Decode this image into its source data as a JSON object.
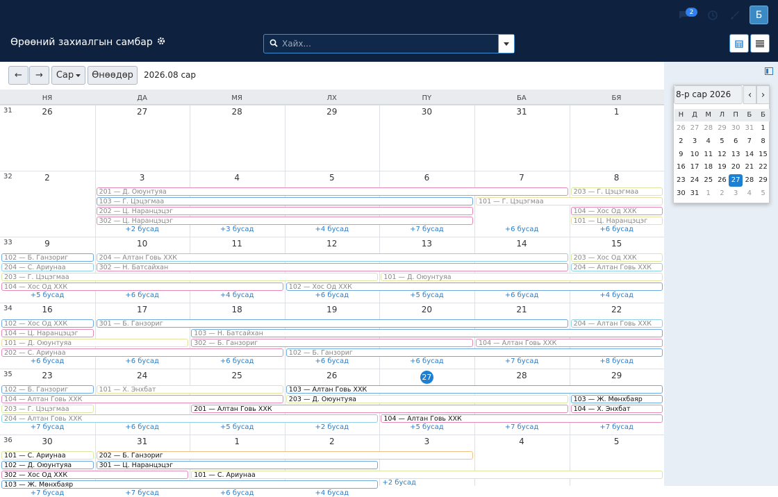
{
  "header": {
    "title": "Өрөөний захиалгын самбар",
    "notification_count": "2",
    "avatar_letter": "Б"
  },
  "search": {
    "placeholder": "Хайх..."
  },
  "toolbar": {
    "prev": "←",
    "next": "→",
    "view_label": "Сар",
    "today_label": "Өнөөдөр",
    "period": "2026.08 сар"
  },
  "weekdays": [
    "НЯ",
    "ДА",
    "МЯ",
    "ЛХ",
    "ПҮ",
    "БА",
    "БЯ"
  ],
  "weeks": [
    {
      "num": "31",
      "days": [
        "26",
        "27",
        "28",
        "29",
        "30",
        "31",
        "1"
      ]
    },
    {
      "num": "32",
      "days": [
        "2",
        "3",
        "4",
        "5",
        "6",
        "7",
        "8"
      ]
    },
    {
      "num": "33",
      "days": [
        "9",
        "10",
        "11",
        "12",
        "13",
        "14",
        "15"
      ]
    },
    {
      "num": "34",
      "days": [
        "16",
        "17",
        "18",
        "19",
        "20",
        "21",
        "22"
      ]
    },
    {
      "num": "35",
      "days": [
        "23",
        "24",
        "25",
        "26",
        "27",
        "28",
        "29"
      ]
    },
    {
      "num": "36",
      "days": [
        "30",
        "31",
        "1",
        "2",
        "3",
        "4",
        "5"
      ]
    }
  ],
  "today": {
    "week": 4,
    "col": 4
  },
  "events": [
    {
      "w": 1,
      "c": 1,
      "s": 5,
      "r": 0,
      "t": "201 — Д. Оюунтуяа",
      "color": "#e58ab8"
    },
    {
      "w": 1,
      "c": 6,
      "s": 1,
      "r": 0,
      "t": "203 — Г. Цэцэгмаа",
      "color": "#d8e8a0"
    },
    {
      "w": 1,
      "c": 1,
      "s": 4,
      "r": 1,
      "t": "103 — Г. Цэцэгмаа",
      "color": "#6ea8e0"
    },
    {
      "w": 1,
      "c": 5,
      "s": 2,
      "r": 1,
      "t": "101 — Г. Цэцэгмаа",
      "color": "#e8e0a0"
    },
    {
      "w": 1,
      "c": 1,
      "s": 4,
      "r": 2,
      "t": "202 — Ц. Наранцэцэг",
      "color": "#e58ab8"
    },
    {
      "w": 1,
      "c": 6,
      "s": 1,
      "r": 2,
      "t": "104 — Хос Од ХХК",
      "color": "#e58ab8"
    },
    {
      "w": 1,
      "c": 1,
      "s": 4,
      "r": 3,
      "t": "302 — Ц. Наранцэцэг",
      "color": "#e58ab8"
    },
    {
      "w": 1,
      "c": 6,
      "s": 1,
      "r": 3,
      "t": "101 — Ц. Наранцэцэг",
      "color": "#e8e0a0"
    },
    {
      "w": 2,
      "c": 0,
      "s": 1,
      "r": 0,
      "t": "102 — Б. Ганзориг",
      "color": "#6ea8e0"
    },
    {
      "w": 2,
      "c": 1,
      "s": 5,
      "r": 0,
      "t": "204 — Алтан Говь ХХК",
      "color": "#8fd0e8"
    },
    {
      "w": 2,
      "c": 6,
      "s": 1,
      "r": 0,
      "t": "203 — Хос Од ХХК",
      "color": "#d8e8a0"
    },
    {
      "w": 2,
      "c": 0,
      "s": 1,
      "r": 1,
      "t": "204 — С. Ариунаа",
      "color": "#8fd0e8"
    },
    {
      "w": 2,
      "c": 1,
      "s": 5,
      "r": 1,
      "t": "302 — Н. Батсайхан",
      "color": "#e58ab8"
    },
    {
      "w": 2,
      "c": 6,
      "s": 1,
      "r": 1,
      "t": "204 — Алтан Говь ХХК",
      "color": "#8fd0e8"
    },
    {
      "w": 2,
      "c": 0,
      "s": 4,
      "r": 2,
      "t": "203 — Г. Цэцэгмаа",
      "color": "#d8e8a0"
    },
    {
      "w": 2,
      "c": 4,
      "s": 3,
      "r": 2,
      "t": "101 — Д. Оюунтуяа",
      "color": "#e8e0a0"
    },
    {
      "w": 2,
      "c": 0,
      "s": 3,
      "r": 3,
      "t": "104 — Хос Од ХХК",
      "color": "#e58ab8"
    },
    {
      "w": 2,
      "c": 3,
      "s": 4,
      "r": 3,
      "t": "102 — Хос Од ХХК",
      "color": "#6ea8e0"
    },
    {
      "w": 3,
      "c": 0,
      "s": 1,
      "r": 0,
      "t": "102 — Хос Од ХХК",
      "color": "#6ea8e0"
    },
    {
      "w": 3,
      "c": 1,
      "s": 5,
      "r": 0,
      "t": "301 — Б. Ганзориг",
      "color": "#6ea8e0"
    },
    {
      "w": 3,
      "c": 6,
      "s": 1,
      "r": 0,
      "t": "204 — Алтан Говь ХХК",
      "color": "#8fd0e8"
    },
    {
      "w": 3,
      "c": 0,
      "s": 1,
      "r": 1,
      "t": "104 — Ц. Наранцэцэг",
      "color": "#e58ab8"
    },
    {
      "w": 3,
      "c": 2,
      "s": 5,
      "r": 1,
      "t": "103 — Н. Батсайхан",
      "color": "#6ea8e0"
    },
    {
      "w": 3,
      "c": 0,
      "s": 2,
      "r": 2,
      "t": "101 — Д. Оюунтуяа",
      "color": "#e8e0a0"
    },
    {
      "w": 3,
      "c": 2,
      "s": 3,
      "r": 2,
      "t": "302 — Б. Ганзориг",
      "color": "#e58ab8"
    },
    {
      "w": 3,
      "c": 5,
      "s": 2,
      "r": 2,
      "t": "104 — Алтан Говь ХХК",
      "color": "#e58ab8"
    },
    {
      "w": 3,
      "c": 0,
      "s": 3,
      "r": 3,
      "t": "202 — С. Ариунаа",
      "color": "#e58ab8"
    },
    {
      "w": 3,
      "c": 3,
      "s": 4,
      "r": 3,
      "t": "102 — Б. Ганзориг",
      "color": "#6ea8e0"
    },
    {
      "w": 4,
      "c": 0,
      "s": 1,
      "r": 0,
      "t": "102 — Б. Ганзориг",
      "color": "#6ea8e0"
    },
    {
      "w": 4,
      "c": 1,
      "s": 2,
      "r": 0,
      "t": "101 — Х. Энхбат",
      "color": "#e8e0a0"
    },
    {
      "w": 4,
      "c": 3,
      "s": 4,
      "r": 0,
      "t": "103 — Алтан Говь ХХК",
      "color": "#6ea8e0",
      "cur": true
    },
    {
      "w": 4,
      "c": 0,
      "s": 3,
      "r": 1,
      "t": "104 — Алтан Говь ХХК",
      "color": "#e58ab8"
    },
    {
      "w": 4,
      "c": 3,
      "s": 3,
      "r": 1,
      "t": "203 — Д. Оюунтуяа",
      "color": "#d8e8a0",
      "cur": true
    },
    {
      "w": 4,
      "c": 6,
      "s": 1,
      "r": 1,
      "t": "103 — Ж. Мөнхбаяр",
      "color": "#6ea8e0",
      "cur": true
    },
    {
      "w": 4,
      "c": 0,
      "s": 1,
      "r": 2,
      "t": "203 — Г. Цэцэгмаа",
      "color": "#d8e8a0"
    },
    {
      "w": 4,
      "c": 2,
      "s": 4,
      "r": 2,
      "t": "201 — Алтан Говь ХХК",
      "color": "#e58ab8",
      "cur": true
    },
    {
      "w": 4,
      "c": 6,
      "s": 1,
      "r": 2,
      "t": "104 — Х. Энхбат",
      "color": "#e58ab8",
      "cur": true
    },
    {
      "w": 4,
      "c": 0,
      "s": 4,
      "r": 3,
      "t": "204 — Алтан Говь ХХК",
      "color": "#8fd0e8"
    },
    {
      "w": 4,
      "c": 4,
      "s": 3,
      "r": 3,
      "t": "104 — Алтан Говь ХХК",
      "color": "#e58ab8",
      "cur": true
    },
    {
      "w": 5,
      "c": 0,
      "s": 1,
      "r": 0,
      "t": "101 — С. Ариунаа",
      "color": "#d8e8a0",
      "cur": true
    },
    {
      "w": 5,
      "c": 1,
      "s": 4,
      "r": 0,
      "t": "202 — Б. Ганзориг",
      "color": "#f0c080",
      "cur": true
    },
    {
      "w": 5,
      "c": 0,
      "s": 1,
      "r": 1,
      "t": "102 — Д. Оюунтуяа",
      "color": "#6ea8e0",
      "cur": true
    },
    {
      "w": 5,
      "c": 1,
      "s": 3,
      "r": 1,
      "t": "301 — Ц. Наранцэцэг",
      "color": "#6ea8e0",
      "cur": true
    },
    {
      "w": 5,
      "c": 0,
      "s": 2,
      "r": 2,
      "t": "302 — Хос Од ХХК",
      "color": "#e58ab8",
      "cur": true
    },
    {
      "w": 5,
      "c": 2,
      "s": 5,
      "r": 2,
      "t": "101 — С. Ариунаа",
      "color": "#d8e8a0",
      "cur": true
    },
    {
      "w": 5,
      "c": 0,
      "s": 4,
      "r": 3,
      "t": "103 — Ж. Мөнхбаяр",
      "color": "#6ea8e0",
      "cur": true
    }
  ],
  "more": [
    {
      "w": 1,
      "c": 1,
      "t": "+2 бусад"
    },
    {
      "w": 1,
      "c": 2,
      "t": "+3 бусад"
    },
    {
      "w": 1,
      "c": 3,
      "t": "+4 бусад"
    },
    {
      "w": 1,
      "c": 4,
      "t": "+7 бусад"
    },
    {
      "w": 1,
      "c": 5,
      "t": "+6 бусад"
    },
    {
      "w": 1,
      "c": 6,
      "t": "+6 бусад"
    },
    {
      "w": 2,
      "c": 0,
      "t": "+5 бусад"
    },
    {
      "w": 2,
      "c": 1,
      "t": "+6 бусад"
    },
    {
      "w": 2,
      "c": 2,
      "t": "+4 бусад"
    },
    {
      "w": 2,
      "c": 3,
      "t": "+6 бусад"
    },
    {
      "w": 2,
      "c": 4,
      "t": "+5 бусад"
    },
    {
      "w": 2,
      "c": 5,
      "t": "+6 бусад"
    },
    {
      "w": 2,
      "c": 6,
      "t": "+4 бусад"
    },
    {
      "w": 3,
      "c": 0,
      "t": "+6 бусад"
    },
    {
      "w": 3,
      "c": 1,
      "t": "+6 бусад"
    },
    {
      "w": 3,
      "c": 2,
      "t": "+6 бусад"
    },
    {
      "w": 3,
      "c": 3,
      "t": "+6 бусад"
    },
    {
      "w": 3,
      "c": 4,
      "t": "+6 бусад"
    },
    {
      "w": 3,
      "c": 5,
      "t": "+7 бусад"
    },
    {
      "w": 3,
      "c": 6,
      "t": "+8 бусад"
    },
    {
      "w": 4,
      "c": 0,
      "t": "+7 бусад"
    },
    {
      "w": 4,
      "c": 1,
      "t": "+6 бусад"
    },
    {
      "w": 4,
      "c": 2,
      "t": "+5 бусад"
    },
    {
      "w": 4,
      "c": 3,
      "t": "+2 бусад"
    },
    {
      "w": 4,
      "c": 4,
      "t": "+5 бусад"
    },
    {
      "w": 4,
      "c": 5,
      "t": "+7 бусад"
    },
    {
      "w": 4,
      "c": 6,
      "t": "+7 бусад"
    },
    {
      "w": 5,
      "c": 0,
      "t": "+7 бусад"
    },
    {
      "w": 5,
      "c": 1,
      "t": "+7 бусад"
    },
    {
      "w": 5,
      "c": 2,
      "t": "+6 бусад"
    },
    {
      "w": 5,
      "c": 3,
      "t": "+4 бусад"
    }
  ],
  "more_inline": {
    "w": 5,
    "c": 4,
    "t": "+2 бусад"
  },
  "minical": {
    "title": "8-р сар 2026",
    "prev": "‹",
    "next": "›",
    "weekdays": [
      "Н",
      "Д",
      "М",
      "Л",
      "П",
      "Б",
      "Б"
    ],
    "weeks": [
      [
        "26",
        "27",
        "28",
        "29",
        "30",
        "31",
        "1"
      ],
      [
        "2",
        "3",
        "4",
        "5",
        "6",
        "7",
        "8"
      ],
      [
        "9",
        "10",
        "11",
        "12",
        "13",
        "14",
        "15"
      ],
      [
        "16",
        "17",
        "18",
        "19",
        "20",
        "21",
        "22"
      ],
      [
        "23",
        "24",
        "25",
        "26",
        "27",
        "28",
        "29"
      ],
      [
        "30",
        "31",
        "1",
        "2",
        "3",
        "4",
        "5"
      ]
    ],
    "today": {
      "w": 4,
      "c": 4
    }
  }
}
